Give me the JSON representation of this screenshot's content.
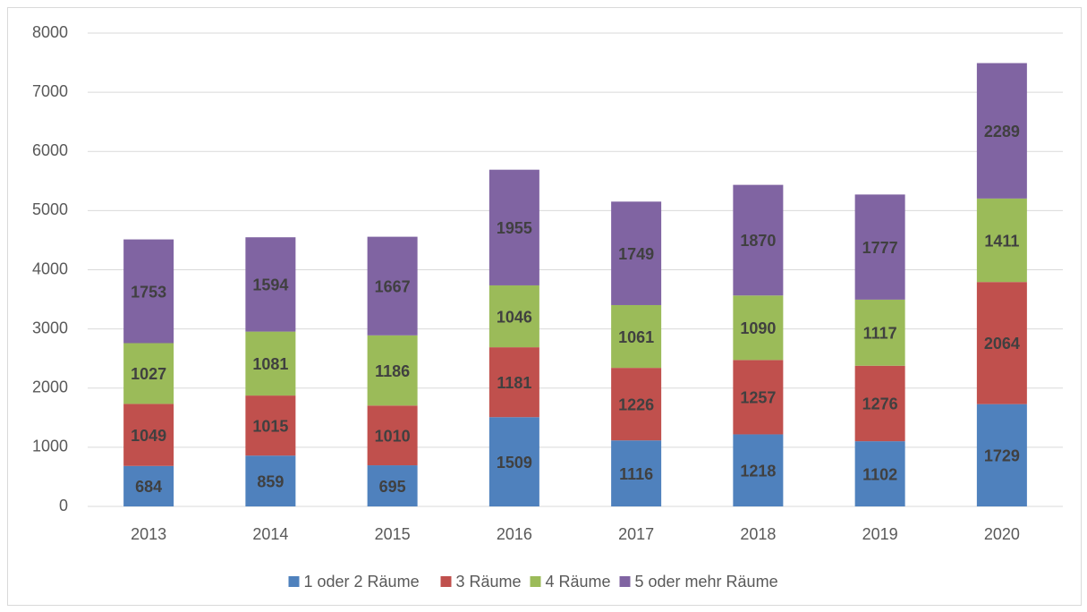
{
  "chart_data": {
    "type": "stacked_bar",
    "categories": [
      "2013",
      "2014",
      "2015",
      "2016",
      "2017",
      "2018",
      "2019",
      "2020"
    ],
    "series": [
      {
        "name": "1 oder 2 Räume",
        "color": "#4f81bd",
        "values": [
          684,
          859,
          695,
          1509,
          1116,
          1218,
          1102,
          1729
        ]
      },
      {
        "name": "3 Räume",
        "color": "#c0504d",
        "values": [
          1049,
          1015,
          1010,
          1181,
          1226,
          1257,
          1276,
          2064
        ]
      },
      {
        "name": "4 Räume",
        "color": "#9bbb59",
        "values": [
          1027,
          1081,
          1186,
          1046,
          1061,
          1090,
          1117,
          1411
        ]
      },
      {
        "name": "5 oder mehr Räume",
        "color": "#8064a2",
        "values": [
          1753,
          1594,
          1667,
          1955,
          1749,
          1870,
          1777,
          2289
        ]
      }
    ],
    "ylim": [
      0,
      8000
    ],
    "yticks": [
      0,
      1000,
      2000,
      3000,
      4000,
      5000,
      6000,
      7000,
      8000
    ],
    "grid": true,
    "legend": "bottom"
  }
}
